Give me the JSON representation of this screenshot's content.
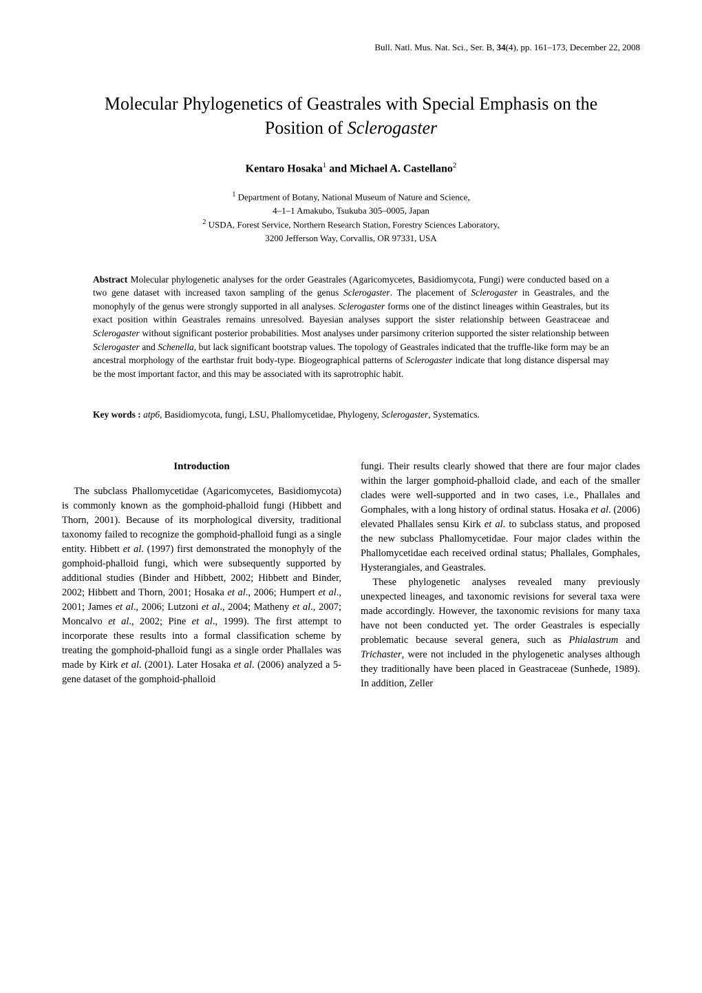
{
  "header": {
    "journal_line": "Bull. Natl. Mus. Nat. Sci., Ser. B, ",
    "volume_bold": "34",
    "issue_pages_date": "(4), pp. 161–173, December 22, 2008"
  },
  "title": {
    "line1": "Molecular Phylogenetics of Geastrales with Special Emphasis on the",
    "line2_pre": "Position of ",
    "line2_italic": "Sclerogaster"
  },
  "authors": {
    "a1_name": "Kentaro Hosaka",
    "a1_sup": "1",
    "connector": " and ",
    "a2_name": "Michael A. Castellano",
    "a2_sup": "2"
  },
  "affiliations": {
    "aff1_sup": "1",
    "aff1_line1": " Department of Botany, National Museum of Nature and Science,",
    "aff1_line2": "4–1–1 Amakubo, Tsukuba 305–0005, Japan",
    "aff2_sup": "2",
    "aff2_line1": " USDA, Forest Service, Northern Research Station, Forestry Sciences Laboratory,",
    "aff2_line2": "3200 Jefferson Way, Corvallis, OR 97331, USA"
  },
  "abstract": {
    "label": "Abstract",
    "t1": "   Molecular phylogenetic analyses for the order Geastrales (Agaricomycetes, Basidiomycota, Fungi) were conducted based on a two gene dataset with increased taxon sampling of the genus ",
    "i1": "Sclerogaster",
    "t2": ". The placement of ",
    "i2": "Sclerogaster",
    "t3": " in Geastrales, and the monophyly of the genus were strongly supported in all analyses. ",
    "i3": "Sclerogaster",
    "t4": " forms one of the distinct lineages within Geastrales, but its exact position within Geastrales remains unresolved. Bayesian analyses support the sister relationship between Geastraceae and ",
    "i4": "Sclerogaster",
    "t5": " without significant posterior probabilities. Most analyses under parsimony criterion supported the sister relationship between ",
    "i5": "Sclerogaster",
    "t6": " and ",
    "i6": "Schenella",
    "t7": ", but lack significant bootstrap values. The topology of Geastrales indicated that the truffle-like form may be an ancestral morphology of the earthstar fruit body-type. Biogeographical patterns of ",
    "i7": "Sclerogaster",
    "t8": " indicate that long distance dispersal may be the most important factor, and this may be associated with its saprotrophic habit."
  },
  "keywords": {
    "label": "Key words :",
    "t1": "   ",
    "i1": "atp6",
    "t2": ", Basidiomycota, fungi, LSU, Phallomycetidae, Phylogeny, ",
    "i2": "Sclerogaster",
    "t3": ", Systematics."
  },
  "intro": {
    "heading": "Introduction",
    "left": {
      "p1a": "The subclass Phallomycetidae (Agaricomycetes, Basidiomycota) is commonly known as the gomphoid-phalloid fungi (Hibbett and Thorn, 2001). Because of its morphological diversity, traditional taxonomy failed to recognize the gomphoid-phalloid fungi as a single entity. Hibbett ",
      "p1i1": "et al",
      "p1b": ". (1997) first demonstrated the monophyly of the gomphoid-phalloid fungi, which were subsequently supported by additional studies (Binder and Hibbett, 2002; Hibbett and Binder, 2002; Hibbett and Thorn, 2001; Hosaka ",
      "p1i2": "et al",
      "p1c": "., 2006; Humpert ",
      "p1i3": "et al",
      "p1d": "., 2001; James ",
      "p1i4": "et al",
      "p1e": "., 2006; Lutzoni ",
      "p1i5": "et al",
      "p1f": "., 2004; Matheny ",
      "p1i6": "et al",
      "p1g": "., 2007; Moncalvo ",
      "p1i7": "et al",
      "p1h": "., 2002; Pine ",
      "p1i8": "et al",
      "p1i": "., 1999). The first attempt to incorporate these results into a formal classification scheme by treating the gomphoid-phalloid fungi as a single order Phallales was made by Kirk ",
      "p1i9": "et al",
      "p1j": ". (2001). Later Hosaka ",
      "p1i10": "et al",
      "p1k": ". (2006) analyzed a 5-gene dataset of the gomphoid-phalloid"
    },
    "right": {
      "p1a": "fungi. Their results clearly showed that there are four major clades within the larger gomphoid-phalloid clade, and each of the smaller clades were well-supported and in two cases, i.e., Phallales and Gomphales, with a long history of ordinal status. Hosaka ",
      "p1i1": "et al",
      "p1b": ". (2006) elevated Phallales sensu Kirk ",
      "p1i2": "et al",
      "p1c": ". to subclass status, and proposed the new subclass Phallomycetidae. Four major clades within the Phallomycetidae each received ordinal status; Phallales, Gomphales, Hysterangiales, and Geastrales.",
      "p2a": "These phylogenetic analyses revealed many previously unexpected lineages, and taxonomic revisions for several taxa were made accordingly. However, the taxonomic revisions for many taxa have not been conducted yet. The order Geastrales is especially problematic because several genera, such as ",
      "p2i1": "Phialastrum",
      "p2b": " and ",
      "p2i2": "Trichaster",
      "p2c": ", were not included in the phylogenetic analyses although they traditionally have been placed in Geastraceae (Sunhede, 1989). In addition, Zeller"
    }
  }
}
